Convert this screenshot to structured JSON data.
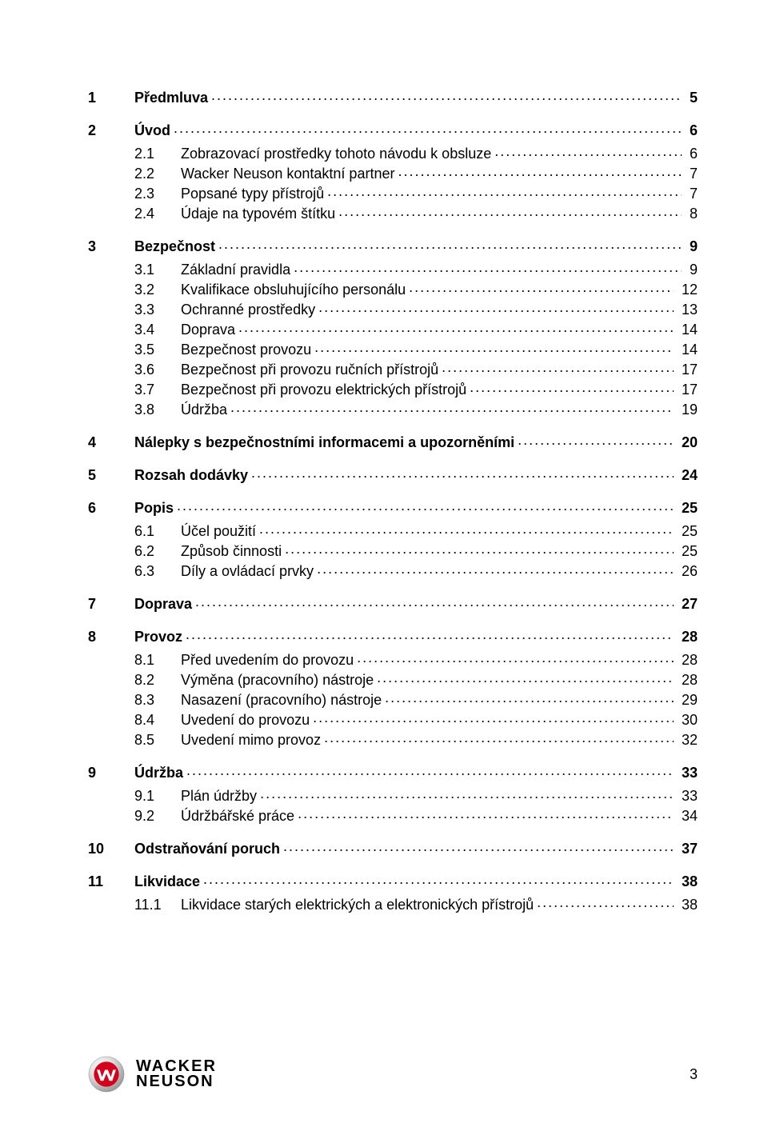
{
  "colors": {
    "background": "#ffffff",
    "text": "#000000",
    "logo_red": "#d4021d",
    "logo_dark": "#1f1f1f",
    "logo_white": "#ffffff",
    "logo_grey": "#cfcfcf"
  },
  "typography": {
    "body_font": "Arial, Helvetica, sans-serif",
    "body_size_pt": 13,
    "brand_size_pt": 15,
    "l1_weight": 700,
    "l2_weight": 400
  },
  "toc": [
    {
      "level": 1,
      "num": "1",
      "title": "Předmluva",
      "page": "5"
    },
    {
      "level": 1,
      "num": "2",
      "title": "Úvod",
      "page": "6"
    },
    {
      "level": 2,
      "num": "2.1",
      "title": "Zobrazovací prostředky tohoto návodu k obsluze",
      "page": "6"
    },
    {
      "level": 2,
      "num": "2.2",
      "title": "Wacker Neuson kontaktní partner",
      "page": "7"
    },
    {
      "level": 2,
      "num": "2.3",
      "title": "Popsané typy přístrojů",
      "page": "7"
    },
    {
      "level": 2,
      "num": "2.4",
      "title": "Údaje na typovém štítku",
      "page": "8"
    },
    {
      "level": 1,
      "num": "3",
      "title": "Bezpečnost",
      "page": "9"
    },
    {
      "level": 2,
      "num": "3.1",
      "title": "Základní pravidla",
      "page": "9"
    },
    {
      "level": 2,
      "num": "3.2",
      "title": "Kvalifikace obsluhujícího personálu",
      "page": "12"
    },
    {
      "level": 2,
      "num": "3.3",
      "title": "Ochranné prostředky",
      "page": "13"
    },
    {
      "level": 2,
      "num": "3.4",
      "title": "Doprava",
      "page": "14"
    },
    {
      "level": 2,
      "num": "3.5",
      "title": "Bezpečnost provozu",
      "page": "14"
    },
    {
      "level": 2,
      "num": "3.6",
      "title": "Bezpečnost při provozu ručních přístrojů",
      "page": "17"
    },
    {
      "level": 2,
      "num": "3.7",
      "title": "Bezpečnost při provozu elektrických přístrojů",
      "page": "17"
    },
    {
      "level": 2,
      "num": "3.8",
      "title": "Údržba",
      "page": "19"
    },
    {
      "level": 1,
      "num": "4",
      "title": "Nálepky s bezpečnostními informacemi a upozorněními",
      "page": "20"
    },
    {
      "level": 1,
      "num": "5",
      "title": "Rozsah dodávky",
      "page": "24"
    },
    {
      "level": 1,
      "num": "6",
      "title": "Popis",
      "page": "25"
    },
    {
      "level": 2,
      "num": "6.1",
      "title": "Účel použití",
      "page": "25"
    },
    {
      "level": 2,
      "num": "6.2",
      "title": "Způsob činnosti",
      "page": "25"
    },
    {
      "level": 2,
      "num": "6.3",
      "title": "Díly a ovládací prvky",
      "page": "26"
    },
    {
      "level": 1,
      "num": "7",
      "title": "Doprava",
      "page": "27"
    },
    {
      "level": 1,
      "num": "8",
      "title": "Provoz",
      "page": "28"
    },
    {
      "level": 2,
      "num": "8.1",
      "title": "Před uvedením do provozu",
      "page": "28"
    },
    {
      "level": 2,
      "num": "8.2",
      "title": "Výměna (pracovního) nástroje",
      "page": "28"
    },
    {
      "level": 2,
      "num": "8.3",
      "title": "Nasazení (pracovního) nástroje",
      "page": "29"
    },
    {
      "level": 2,
      "num": "8.4",
      "title": "Uvedení do provozu",
      "page": "30"
    },
    {
      "level": 2,
      "num": "8.5",
      "title": "Uvedení mimo provoz",
      "page": "32"
    },
    {
      "level": 1,
      "num": "9",
      "title": "Údržba",
      "page": "33"
    },
    {
      "level": 2,
      "num": "9.1",
      "title": "Plán údržby",
      "page": "33"
    },
    {
      "level": 2,
      "num": "9.2",
      "title": "Údržbářské práce",
      "page": "34"
    },
    {
      "level": 1,
      "num": "10",
      "title": "Odstraňování poruch",
      "page": "37"
    },
    {
      "level": 1,
      "num": "11",
      "title": "Likvidace",
      "page": "38"
    },
    {
      "level": 2,
      "num": "11.1",
      "title": "Likvidace starých elektrických a elektronických přístrojů",
      "page": "38"
    }
  ],
  "footer": {
    "brand_line1": "WACKER",
    "brand_line2": "NEUSON",
    "page_number": "3"
  }
}
